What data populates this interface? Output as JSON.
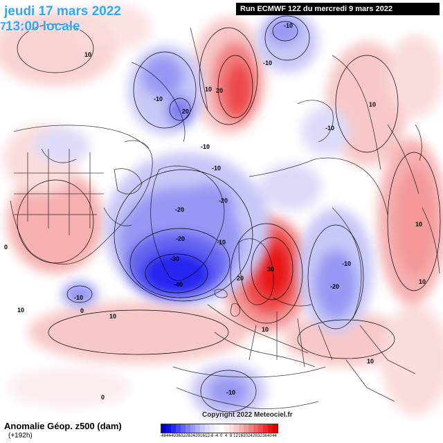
{
  "header": {
    "date": "jeudi 17 mars 2022",
    "time": "13:00 locale",
    "left_mark": "7",
    "run": "Run ECMWF 12Z du mercredi 9 mars 2022"
  },
  "footer": {
    "title": "Anomalie Géop. z500 (dam)",
    "subtitle": "(+192h)",
    "copyright": "Copyright 2022 Meteociel.fr"
  },
  "legend": {
    "values": [
      -48,
      -44,
      -40,
      -36,
      -32,
      -28,
      -24,
      -20,
      -16,
      -12,
      -8,
      -4,
      0,
      4,
      8,
      12,
      16,
      20,
      24,
      28,
      32,
      36,
      40,
      44
    ],
    "labels": [
      "-48",
      "-44",
      "-40",
      "-36",
      "-32",
      "-28",
      "-24",
      "-20",
      "-16",
      "-12",
      "-8",
      "-4",
      "0",
      "4",
      "8",
      "12",
      "16",
      "20",
      "24",
      "28",
      "32",
      "36",
      "40",
      "44"
    ],
    "colors": [
      "#0000c8",
      "#1010e0",
      "#2828f0",
      "#4646f0",
      "#6464f2",
      "#7e7ef2",
      "#9898f4",
      "#b2b2f6",
      "#c8c8f8",
      "#dcdcfa",
      "#eaeafc",
      "#f4f4fe",
      "#ffffff",
      "#fdeeee",
      "#fbdcdc",
      "#f8c8c8",
      "#f6b0b0",
      "#f49898",
      "#f28080",
      "#f06464",
      "#ee4848",
      "#ec2c2c",
      "#e81414",
      "#e00000"
    ]
  },
  "contour_labels": [
    {
      "text": "10"
    },
    {
      "text": "-10"
    },
    {
      "text": "-10"
    },
    {
      "text": "-10"
    },
    {
      "text": "20"
    },
    {
      "text": "10"
    },
    {
      "text": "-10"
    },
    {
      "text": "20"
    },
    {
      "text": "10"
    },
    {
      "text": "10"
    },
    {
      "text": "-10"
    },
    {
      "text": "-20"
    },
    {
      "text": "-20"
    },
    {
      "text": "-20"
    },
    {
      "text": "-10"
    },
    {
      "text": "-30"
    },
    {
      "text": "-40"
    },
    {
      "text": "30"
    },
    {
      "text": "20"
    },
    {
      "text": "10"
    },
    {
      "text": "10"
    },
    {
      "text": "-20"
    },
    {
      "text": "-10"
    },
    {
      "text": "10"
    },
    {
      "text": "-10"
    },
    {
      "text": "0"
    },
    {
      "text": "10"
    },
    {
      "text": "0"
    },
    {
      "text": "10"
    },
    {
      "text": "0"
    },
    {
      "text": "-10"
    },
    {
      "text": "-10"
    }
  ]
}
